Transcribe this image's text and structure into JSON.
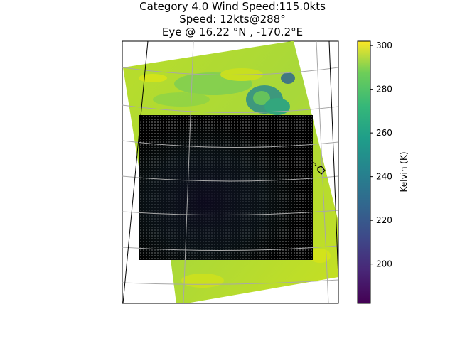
{
  "chart_data": {
    "type": "heatmap",
    "title_lines": [
      "Category 4.0 Wind Speed:115.0kts",
      "Speed: 12kts@288°",
      "Eye @ 16.22 °N , -170.2°E"
    ],
    "colorbar": {
      "label": "Kelvin (K)",
      "range": [
        182,
        302
      ],
      "ticks": [
        200,
        220,
        240,
        260,
        280,
        300
      ],
      "tick_labels": [
        "200",
        "220",
        "240",
        "260",
        "280",
        "300"
      ],
      "colormap": "viridis"
    },
    "eye": {
      "lat": 16.22,
      "lon": -170.2
    },
    "grid": true
  }
}
